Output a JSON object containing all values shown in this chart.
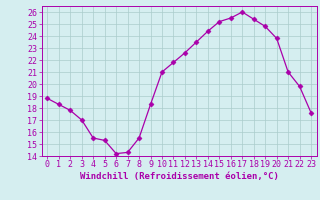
{
  "hours": [
    0,
    1,
    2,
    3,
    4,
    5,
    6,
    7,
    8,
    9,
    10,
    11,
    12,
    13,
    14,
    15,
    16,
    17,
    18,
    19,
    20,
    21,
    22,
    23
  ],
  "values": [
    18.8,
    18.3,
    17.8,
    17.0,
    15.5,
    15.3,
    14.2,
    14.3,
    15.5,
    18.3,
    21.0,
    21.8,
    22.6,
    23.5,
    24.4,
    25.2,
    25.5,
    26.0,
    25.4,
    24.8,
    23.8,
    21.0,
    19.8,
    17.6
  ],
  "line_color": "#aa00aa",
  "marker": "D",
  "marker_size": 2.5,
  "bg_color": "#d5eef0",
  "grid_color": "#aacccc",
  "xlabel": "Windchill (Refroidissement éolien,°C)",
  "xlabel_color": "#aa00aa",
  "tick_color": "#aa00aa",
  "ylim": [
    14,
    26.5
  ],
  "yticks": [
    14,
    15,
    16,
    17,
    18,
    19,
    20,
    21,
    22,
    23,
    24,
    25,
    26
  ],
  "xticks": [
    0,
    1,
    2,
    3,
    4,
    5,
    6,
    7,
    8,
    9,
    10,
    11,
    12,
    13,
    14,
    15,
    16,
    17,
    18,
    19,
    20,
    21,
    22,
    23
  ],
  "label_fontsize": 6.5,
  "tick_fontsize": 6.0
}
